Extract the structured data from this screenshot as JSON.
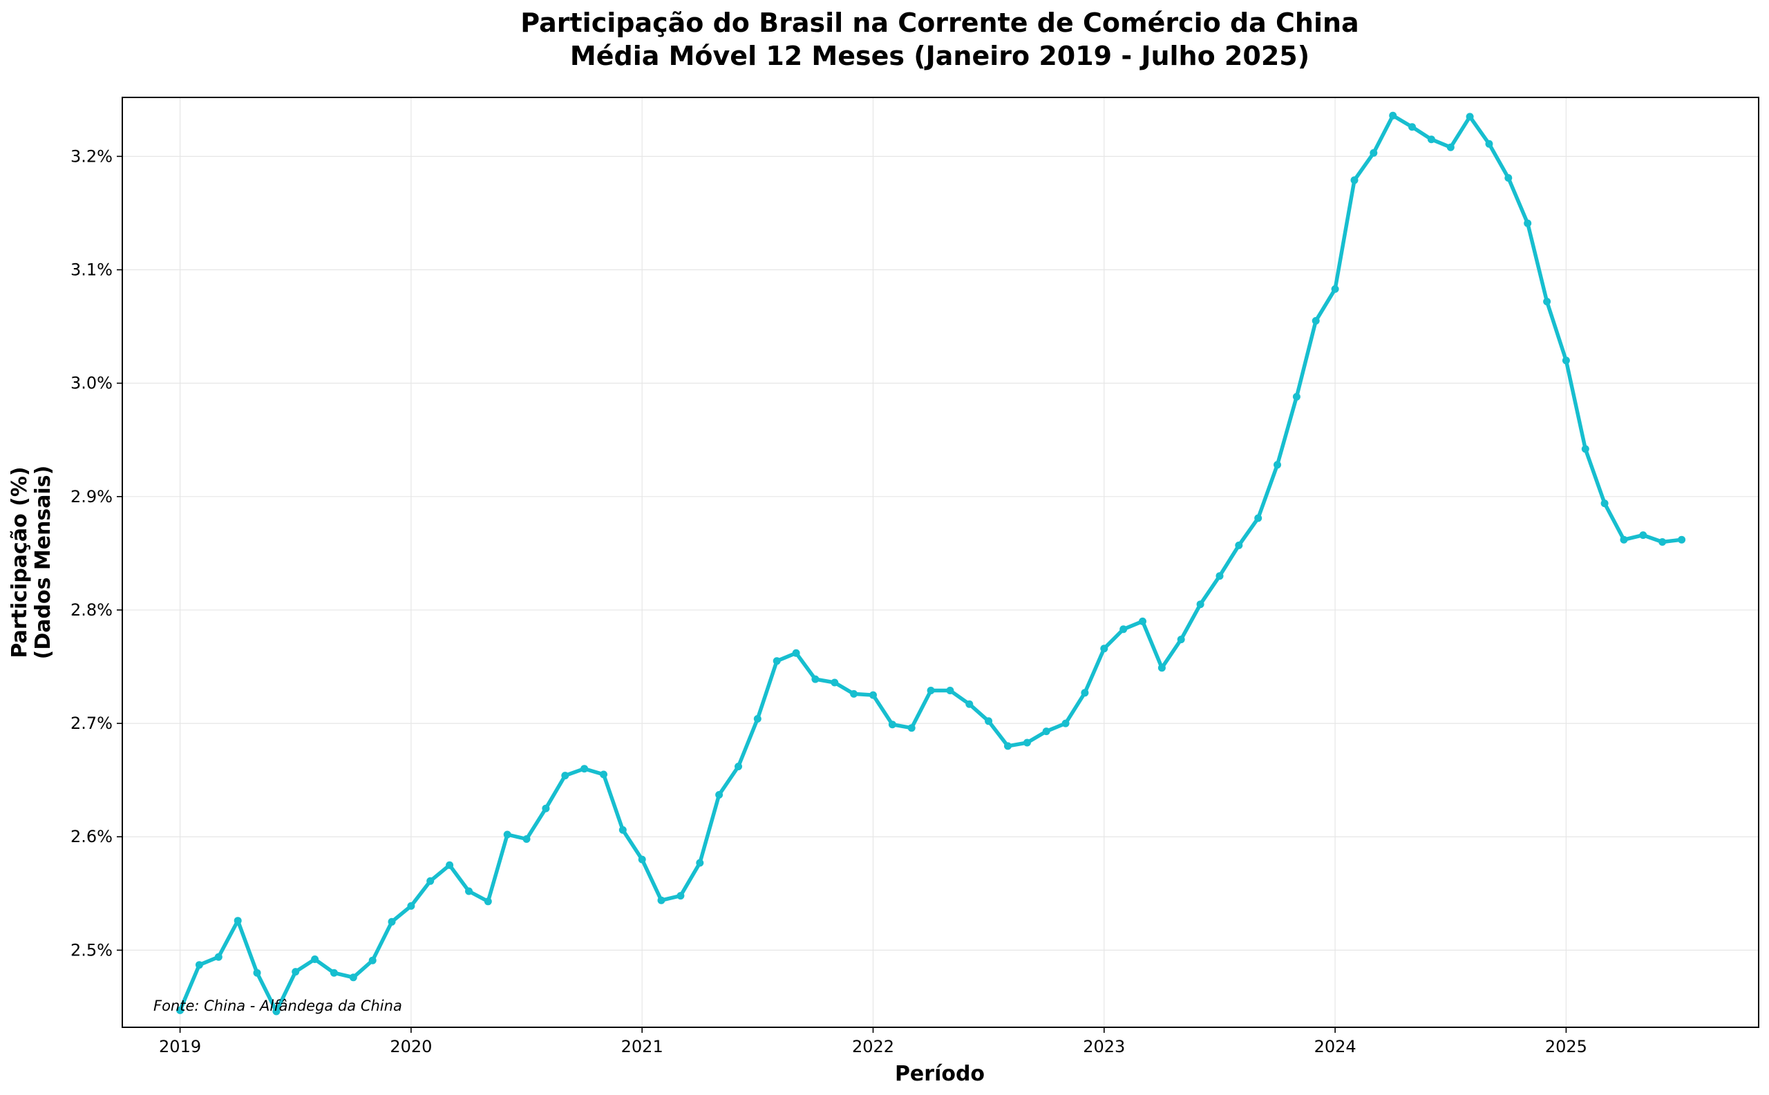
{
  "chart_data": {
    "type": "line",
    "title": "Participação do Brasil na Corrente de Comércio da China",
    "subtitle": "Média Móvel 12 Meses (Janeiro 2019 - Julho 2025)",
    "xlabel": "Período",
    "ylabel_line1": "Participação (%)",
    "ylabel_line2": "(Dados Mensais)",
    "source_note": "Fonte: China - Alfândega da China",
    "x_ticks": [
      "2019",
      "2020",
      "2021",
      "2022",
      "2023",
      "2024",
      "2025"
    ],
    "y_ticks": [
      "2.5%",
      "2.6%",
      "2.7%",
      "2.8%",
      "2.9%",
      "3.0%",
      "3.1%",
      "3.2%"
    ],
    "y_tick_values": [
      2.5,
      2.6,
      2.7,
      2.8,
      2.9,
      3.0,
      3.1,
      3.2
    ],
    "ylim": [
      2.432,
      3.252
    ],
    "xlim": [
      "2018-10",
      "2025-11"
    ],
    "grid": true,
    "line_color": "#17becf",
    "series": [
      {
        "x": [
          "2019-01",
          "2019-02",
          "2019-03",
          "2019-04",
          "2019-05",
          "2019-06",
          "2019-07",
          "2019-08",
          "2019-09",
          "2019-10",
          "2019-11",
          "2019-12",
          "2020-01",
          "2020-02",
          "2020-03",
          "2020-04",
          "2020-05",
          "2020-06",
          "2020-07",
          "2020-08",
          "2020-09",
          "2020-10",
          "2020-11",
          "2020-12",
          "2021-01",
          "2021-02",
          "2021-03",
          "2021-04",
          "2021-05",
          "2021-06",
          "2021-07",
          "2021-08",
          "2021-09",
          "2021-10",
          "2021-11",
          "2021-12",
          "2022-01",
          "2022-02",
          "2022-03",
          "2022-04",
          "2022-05",
          "2022-06",
          "2022-07",
          "2022-08",
          "2022-09",
          "2022-10",
          "2022-11",
          "2022-12",
          "2023-01",
          "2023-02",
          "2023-03",
          "2023-04",
          "2023-05",
          "2023-06",
          "2023-07",
          "2023-08",
          "2023-09",
          "2023-10",
          "2023-11",
          "2023-12",
          "2024-01",
          "2024-02",
          "2024-03",
          "2024-04",
          "2024-05",
          "2024-06",
          "2024-07",
          "2024-08",
          "2024-09",
          "2024-10",
          "2024-11",
          "2024-12",
          "2025-01",
          "2025-02",
          "2025-03",
          "2025-04",
          "2025-05",
          "2025-06",
          "2025-07"
        ],
        "values": [
          2.447,
          2.487,
          2.494,
          2.526,
          2.48,
          2.446,
          2.481,
          2.492,
          2.48,
          2.476,
          2.491,
          2.525,
          2.539,
          2.561,
          2.575,
          2.552,
          2.543,
          2.602,
          2.598,
          2.625,
          2.654,
          2.66,
          2.655,
          2.606,
          2.58,
          2.544,
          2.548,
          2.577,
          2.637,
          2.662,
          2.704,
          2.755,
          2.762,
          2.739,
          2.736,
          2.726,
          2.725,
          2.699,
          2.696,
          2.729,
          2.729,
          2.717,
          2.702,
          2.68,
          2.683,
          2.693,
          2.7,
          2.727,
          2.766,
          2.783,
          2.79,
          2.749,
          2.774,
          2.805,
          2.83,
          2.857,
          2.881,
          2.928,
          2.988,
          3.055,
          3.083,
          3.179,
          3.203,
          3.236,
          3.226,
          3.215,
          3.208,
          3.235,
          3.211,
          3.181,
          3.141,
          3.072,
          3.02,
          2.942,
          2.894,
          2.862,
          2.866,
          2.86,
          2.862
        ]
      }
    ]
  }
}
